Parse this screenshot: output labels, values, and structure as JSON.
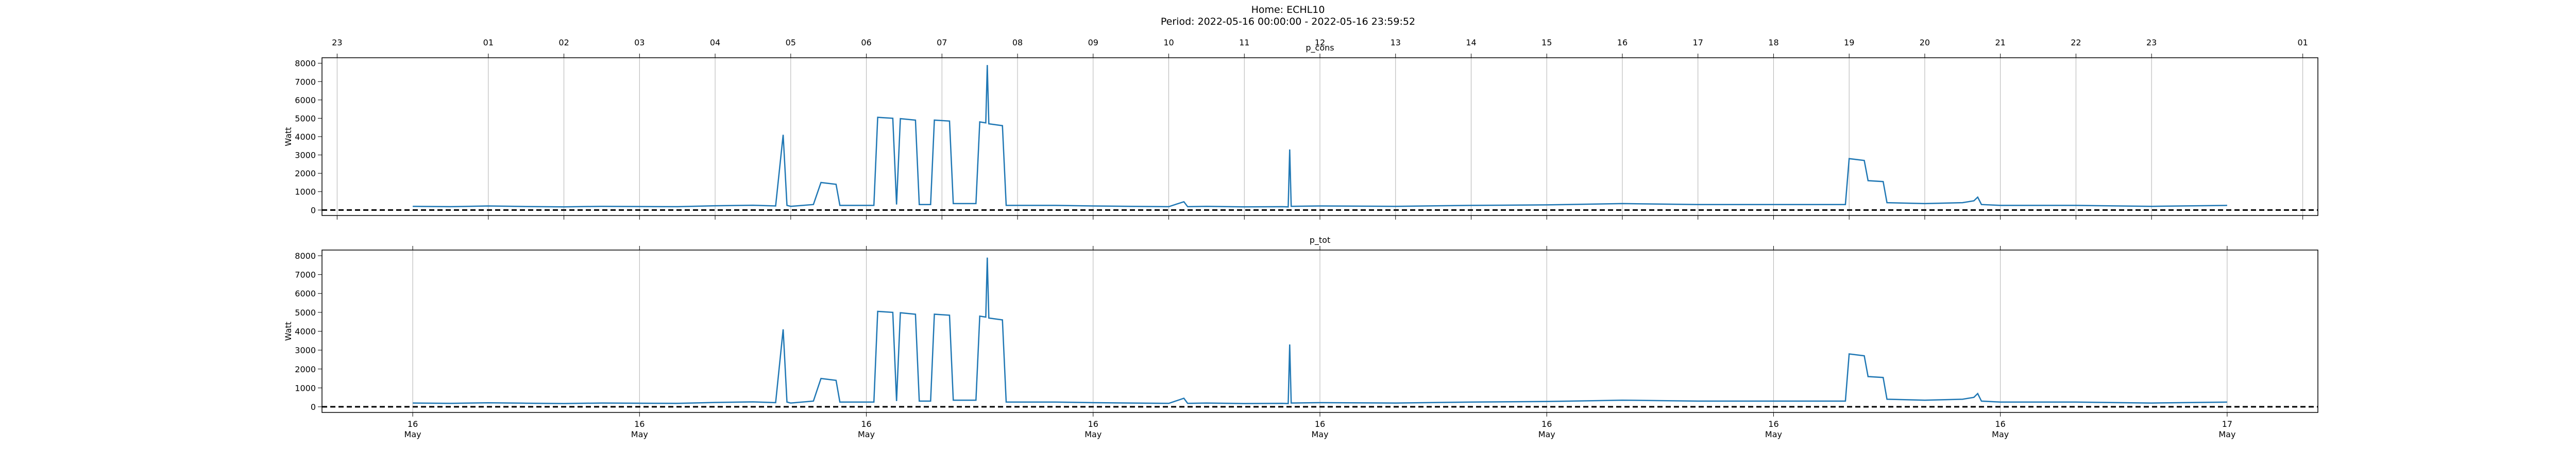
{
  "title": "Home: ECHL10",
  "subtitle": "Period: 2022-05-16 00:00:00 - 2022-05-16 23:59:52",
  "chart_data": [
    {
      "type": "line",
      "title": "p_cons",
      "y_label": "Watt",
      "color": "#1f77b4",
      "grid": true,
      "reference_line": 0,
      "xtick_position": "top",
      "xlim": [
        -1.2,
        25.2
      ],
      "ylim": [
        -300,
        8300
      ],
      "yticks": [
        0,
        1000,
        2000,
        3000,
        4000,
        5000,
        6000,
        7000,
        8000
      ],
      "xticks": [
        {
          "value": -1,
          "label": "23"
        },
        {
          "value": 1,
          "label": "01"
        },
        {
          "value": 2,
          "label": "02"
        },
        {
          "value": 3,
          "label": "03"
        },
        {
          "value": 4,
          "label": "04"
        },
        {
          "value": 5,
          "label": "05"
        },
        {
          "value": 6,
          "label": "06"
        },
        {
          "value": 7,
          "label": "07"
        },
        {
          "value": 8,
          "label": "08"
        },
        {
          "value": 9,
          "label": "09"
        },
        {
          "value": 10,
          "label": "10"
        },
        11,
        12,
        13,
        14,
        15,
        16,
        17,
        18,
        19,
        20,
        21,
        22,
        23,
        {
          "value": 25,
          "label": "01"
        }
      ],
      "x": [
        0,
        0.5,
        1,
        1.5,
        2,
        2.5,
        3,
        3.5,
        4,
        4.5,
        4.8,
        4.9,
        4.95,
        5,
        5.3,
        5.4,
        5.6,
        5.65,
        6.1,
        6.15,
        6.35,
        6.4,
        6.45,
        6.65,
        6.7,
        6.85,
        6.9,
        7.1,
        7.15,
        7.45,
        7.5,
        7.58,
        7.6,
        7.62,
        7.8,
        7.85,
        8.5,
        9,
        9.5,
        10,
        10.2,
        10.25,
        10.5,
        11,
        11.5,
        11.58,
        11.6,
        11.62,
        12,
        13,
        14,
        15,
        16,
        17,
        18,
        18.95,
        19,
        19.2,
        19.25,
        19.45,
        19.5,
        20,
        20.5,
        20.65,
        20.7,
        20.75,
        21,
        22,
        23,
        24
      ],
      "values": [
        200,
        180,
        220,
        190,
        170,
        200,
        190,
        180,
        230,
        260,
        220,
        4100,
        250,
        200,
        300,
        1500,
        1400,
        250,
        250,
        5050,
        5000,
        300,
        4980,
        4900,
        300,
        300,
        4900,
        4850,
        350,
        350,
        4800,
        4750,
        7900,
        4700,
        4600,
        250,
        250,
        220,
        200,
        180,
        450,
        180,
        200,
        170,
        180,
        170,
        3300,
        200,
        220,
        200,
        250,
        280,
        350,
        300,
        300,
        300,
        2800,
        2700,
        1600,
        1550,
        400,
        350,
        400,
        500,
        700,
        300,
        250,
        250,
        200,
        250
      ]
    },
    {
      "type": "line",
      "title": "p_tot",
      "y_label": "Watt",
      "color": "#1f77b4",
      "grid": true,
      "reference_line": 0,
      "xtick_position": "bottom",
      "xlim": [
        -1.2,
        25.2
      ],
      "ylim": [
        -300,
        8300
      ],
      "yticks": [
        0,
        1000,
        2000,
        3000,
        4000,
        5000,
        6000,
        7000,
        8000
      ],
      "xticks": [
        {
          "value": 0,
          "label": "16 May"
        },
        {
          "value": 3,
          "label": "16 May"
        },
        {
          "value": 6,
          "label": "16 May"
        },
        {
          "value": 9,
          "label": "16 May"
        },
        {
          "value": 12,
          "label": "16 May"
        },
        {
          "value": 15,
          "label": "16 May"
        },
        {
          "value": 18,
          "label": "16 May"
        },
        {
          "value": 21,
          "label": "16 May"
        },
        {
          "value": 24,
          "label": "17 May"
        }
      ],
      "x": [
        0,
        0.5,
        1,
        1.5,
        2,
        2.5,
        3,
        3.5,
        4,
        4.5,
        4.8,
        4.9,
        4.95,
        5,
        5.3,
        5.4,
        5.6,
        5.65,
        6.1,
        6.15,
        6.35,
        6.4,
        6.45,
        6.65,
        6.7,
        6.85,
        6.9,
        7.1,
        7.15,
        7.45,
        7.5,
        7.58,
        7.6,
        7.62,
        7.8,
        7.85,
        8.5,
        9,
        9.5,
        10,
        10.2,
        10.25,
        10.5,
        11,
        11.5,
        11.58,
        11.6,
        11.62,
        12,
        13,
        14,
        15,
        16,
        17,
        18,
        18.95,
        19,
        19.2,
        19.25,
        19.45,
        19.5,
        20,
        20.5,
        20.65,
        20.7,
        20.75,
        21,
        22,
        23,
        24
      ],
      "values": [
        200,
        180,
        210,
        190,
        170,
        200,
        190,
        180,
        230,
        260,
        220,
        4100,
        250,
        200,
        300,
        1500,
        1400,
        250,
        250,
        5050,
        5000,
        300,
        4980,
        4900,
        300,
        300,
        4900,
        4850,
        350,
        350,
        4800,
        4750,
        7900,
        4700,
        4600,
        250,
        250,
        220,
        200,
        180,
        450,
        180,
        200,
        170,
        180,
        170,
        3300,
        200,
        220,
        200,
        250,
        280,
        350,
        300,
        300,
        300,
        2800,
        2700,
        1600,
        1550,
        400,
        350,
        400,
        500,
        700,
        300,
        250,
        250,
        200,
        250
      ]
    }
  ]
}
